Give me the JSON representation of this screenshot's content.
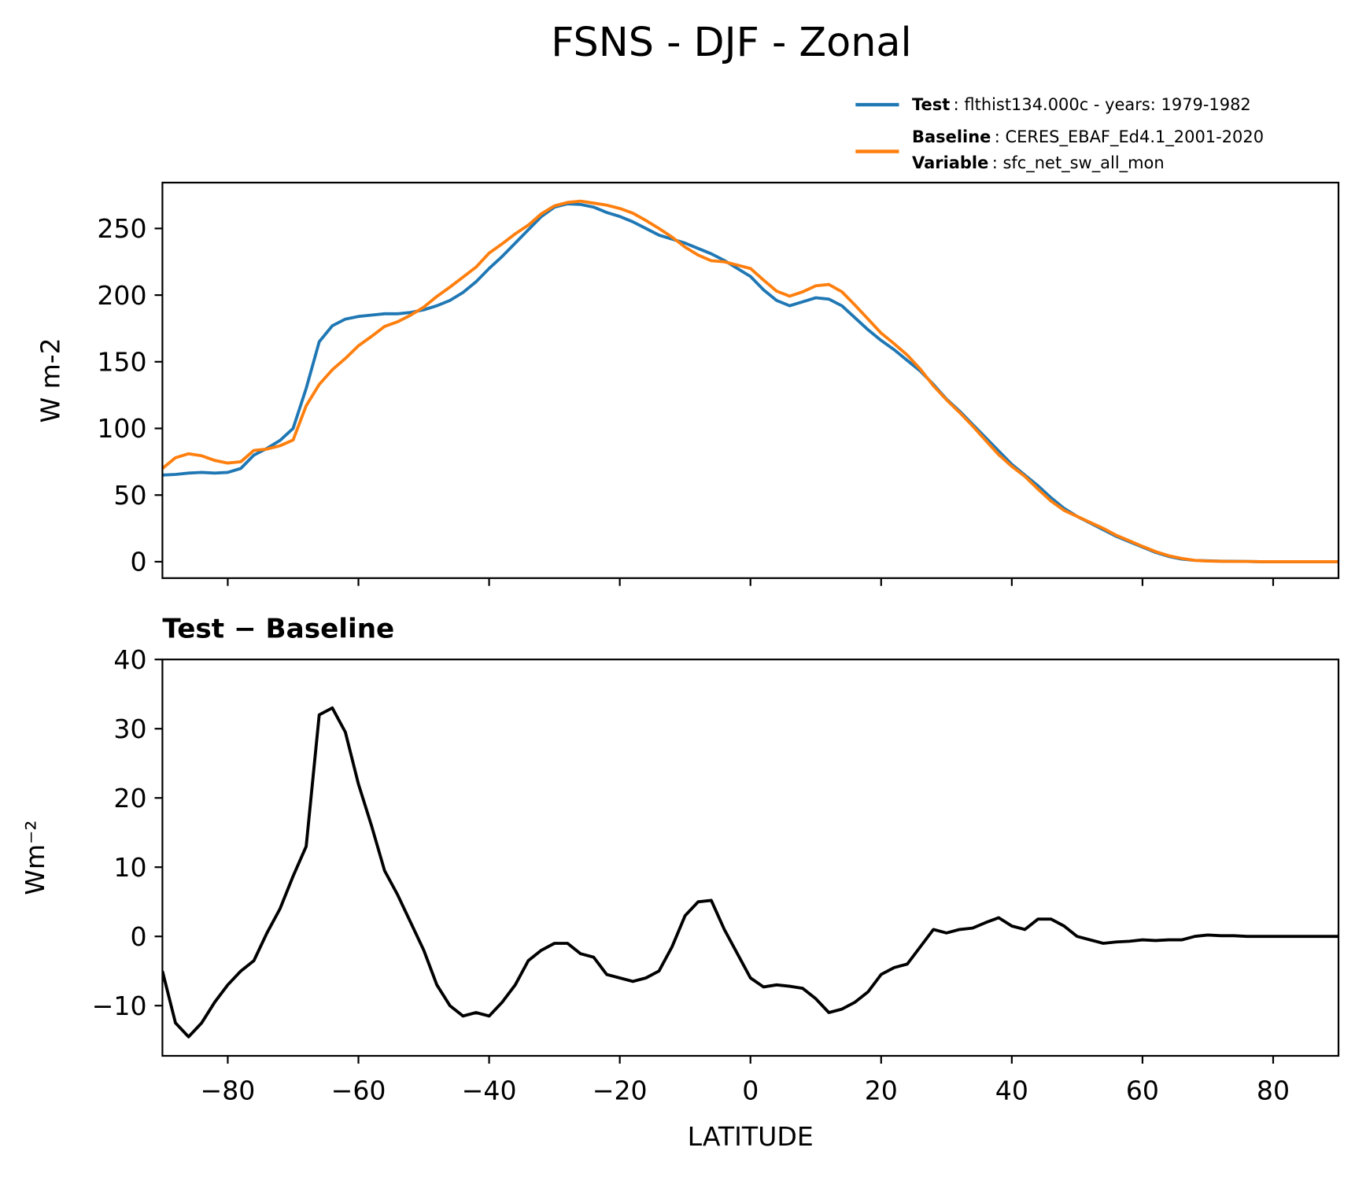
{
  "title": "FSNS - DJF - Zonal",
  "legend_variable_label": "Variable",
  "legend_variable": ": sfc_net_sw_all_mon",
  "chart_data": [
    {
      "type": "line",
      "ylabel": "W m-2",
      "x": [
        -90,
        -88,
        -86,
        -84,
        -82,
        -80,
        -78,
        -76,
        -74,
        -72,
        -70,
        -68,
        -66,
        -64,
        -62,
        -60,
        -58,
        -56,
        -54,
        -52,
        -50,
        -48,
        -46,
        -44,
        -42,
        -40,
        -38,
        -36,
        -34,
        -32,
        -30,
        -28,
        -26,
        -24,
        -22,
        -20,
        -18,
        -16,
        -14,
        -12,
        -10,
        -8,
        -6,
        -4,
        -2,
        0,
        2,
        4,
        6,
        8,
        10,
        12,
        14,
        16,
        18,
        20,
        22,
        24,
        26,
        28,
        30,
        32,
        34,
        36,
        38,
        40,
        42,
        44,
        46,
        48,
        50,
        52,
        54,
        56,
        58,
        60,
        62,
        64,
        66,
        68,
        70,
        72,
        74,
        76,
        78,
        80,
        82,
        84,
        86,
        88,
        90
      ],
      "series": [
        {
          "name": "Test",
          "description": ": flthist134.000c - years: 1979-1982",
          "color": "#1f77b4",
          "values": [
            65,
            65.5,
            66.5,
            67,
            66.5,
            67,
            70,
            80,
            85,
            91,
            100,
            130,
            165,
            177,
            182,
            184,
            185,
            186,
            186,
            187,
            189,
            192,
            196,
            202,
            210,
            220,
            229,
            239,
            249,
            259,
            266,
            268.5,
            268,
            266,
            262,
            259,
            255,
            250,
            245,
            242,
            239,
            235,
            231,
            226,
            220,
            214,
            204,
            196,
            192,
            195,
            198,
            197,
            192,
            183,
            174,
            166,
            159,
            151,
            143,
            133,
            122,
            113,
            103,
            93,
            83,
            73,
            65,
            57,
            48,
            40,
            34,
            29,
            24,
            19,
            15,
            11,
            7,
            4,
            2,
            1,
            0.7,
            0.4,
            0.3,
            0.2,
            0,
            0,
            0,
            0,
            0,
            0,
            0
          ]
        },
        {
          "name": "Baseline",
          "description": ": CERES_EBAF_Ed4.1_2001-2020",
          "color": "#ff7f0e",
          "values": [
            70,
            78,
            81,
            79.5,
            76,
            74,
            75,
            83.5,
            84.5,
            87,
            91.3,
            117,
            133,
            144,
            152.5,
            162,
            169,
            176.5,
            180,
            185,
            191,
            199,
            206,
            213.5,
            221,
            231.5,
            238.5,
            246,
            252.5,
            261,
            267,
            269.5,
            270.5,
            269,
            267.5,
            265,
            261.5,
            256,
            250,
            243.5,
            236,
            230,
            225.8,
            225,
            222.5,
            220,
            211.3,
            203,
            199.2,
            202.5,
            207,
            208,
            202.5,
            192.5,
            182,
            171.5,
            163.5,
            155,
            144.5,
            132,
            121.5,
            112,
            101.8,
            91,
            80.3,
            71.5,
            64,
            54.5,
            45.5,
            38.5,
            34,
            29.5,
            25,
            19.8,
            15.7,
            11.5,
            7.6,
            4.5,
            2.5,
            1,
            0.5,
            0.3,
            0.2,
            0.2,
            0,
            0,
            0,
            0,
            0,
            0,
            0
          ]
        }
      ],
      "xlim": [
        -90,
        90
      ],
      "xticks": [
        -80,
        -60,
        -40,
        -20,
        0,
        20,
        40,
        60,
        80
      ],
      "ylim": [
        -12.3,
        284.4
      ],
      "yticks": [
        0,
        50,
        100,
        150,
        200,
        250
      ],
      "grid": false
    },
    {
      "type": "line",
      "title": "Test − Baseline",
      "ylabel": "Wm⁻²",
      "xlabel": "LATITUDE",
      "x": [
        -90,
        -88,
        -86,
        -84,
        -82,
        -80,
        -78,
        -76,
        -74,
        -72,
        -70,
        -68,
        -66,
        -64,
        -62,
        -60,
        -58,
        -56,
        -54,
        -52,
        -50,
        -48,
        -46,
        -44,
        -42,
        -40,
        -38,
        -36,
        -34,
        -32,
        -30,
        -28,
        -26,
        -24,
        -22,
        -20,
        -18,
        -16,
        -14,
        -12,
        -10,
        -8,
        -6,
        -4,
        -2,
        0,
        2,
        4,
        6,
        8,
        10,
        12,
        14,
        16,
        18,
        20,
        22,
        24,
        26,
        28,
        30,
        32,
        34,
        36,
        38,
        40,
        42,
        44,
        46,
        48,
        50,
        52,
        54,
        56,
        58,
        60,
        62,
        64,
        66,
        68,
        70,
        72,
        74,
        76,
        78,
        80,
        82,
        84,
        86,
        88,
        90
      ],
      "series": [
        {
          "color": "#000000",
          "values": [
            -5,
            -12.5,
            -14.5,
            -12.5,
            -9.5,
            -7,
            -5,
            -3.5,
            0.5,
            4,
            8.7,
            13,
            32,
            33,
            29.5,
            22,
            16,
            9.5,
            6,
            2,
            -2,
            -7,
            -10,
            -11.5,
            -11,
            -11.5,
            -9.5,
            -7,
            -3.5,
            -2,
            -1,
            -1,
            -2.5,
            -3,
            -5.5,
            -6,
            -6.5,
            -6,
            -5,
            -1.5,
            3,
            5,
            5.2,
            1,
            -2.5,
            -6,
            -7.3,
            -7,
            -7.2,
            -7.5,
            -9,
            -11,
            -10.5,
            -9.5,
            -8,
            -5.5,
            -4.5,
            -4,
            -1.5,
            1,
            0.5,
            1,
            1.2,
            2,
            2.7,
            1.5,
            1,
            2.5,
            2.5,
            1.5,
            0,
            -0.5,
            -1,
            -0.8,
            -0.7,
            -0.5,
            -0.6,
            -0.5,
            -0.5,
            0,
            0.2,
            0.1,
            0.1,
            0,
            0,
            0,
            0,
            0,
            0,
            0,
            0
          ]
        }
      ],
      "xlim": [
        -90,
        90
      ],
      "xticks": [
        {
          "value": -80,
          "label": "−80"
        },
        {
          "value": -60,
          "label": "−60"
        },
        {
          "value": -40,
          "label": "−40"
        },
        {
          "value": -20,
          "label": "−20"
        },
        0,
        20,
        40,
        60,
        80
      ],
      "ylim": [
        -17.25,
        40
      ],
      "yticks": [
        {
          "value": -10,
          "label": "−10"
        },
        0,
        10,
        20,
        30,
        40
      ],
      "grid": false
    }
  ]
}
